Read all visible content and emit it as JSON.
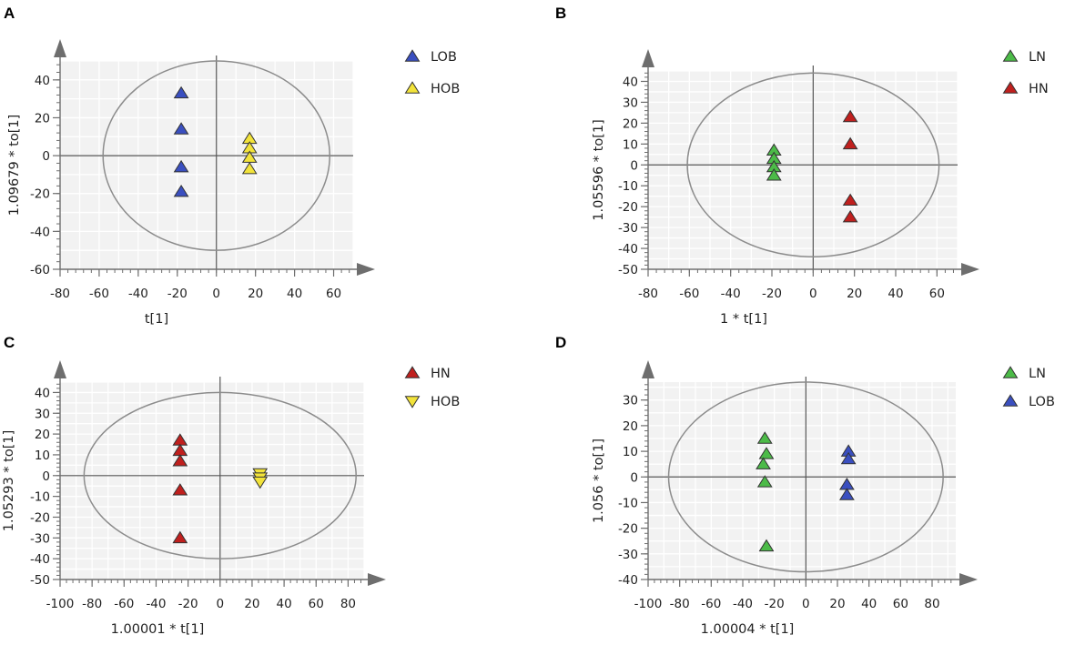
{
  "chart_data": [
    {
      "panel": "A",
      "type": "scatter",
      "xlabel": "t[1]",
      "ylabel": "1.09679 * to[1]",
      "xlim": [
        -80,
        70
      ],
      "ylim": [
        -60,
        50
      ],
      "xticks": [
        -80,
        -60,
        -40,
        -20,
        0,
        20,
        40,
        60
      ],
      "yticks": [
        -60,
        -40,
        -20,
        0,
        20,
        40
      ],
      "ellipse": {
        "rx": 58,
        "ry": 50
      },
      "series": [
        {
          "name": "LOB",
          "color": "#3a4fc0",
          "marker": "triangle-up",
          "points": [
            [
              -18,
              33
            ],
            [
              -18,
              14
            ],
            [
              -18,
              -6
            ],
            [
              -18,
              -19
            ]
          ]
        },
        {
          "name": "HOB",
          "color": "#f2e33a",
          "marker": "triangle-up",
          "points": [
            [
              17,
              9
            ],
            [
              17,
              4
            ],
            [
              17,
              -1
            ],
            [
              17,
              -7
            ]
          ]
        }
      ]
    },
    {
      "panel": "B",
      "type": "scatter",
      "xlabel": "1 * t[1]",
      "ylabel": "1.05596 * to[1]",
      "xlim": [
        -80,
        70
      ],
      "ylim": [
        -50,
        45
      ],
      "xticks": [
        -80,
        -60,
        -40,
        -20,
        0,
        20,
        40,
        60
      ],
      "yticks": [
        -50,
        -40,
        -30,
        -20,
        -10,
        0,
        10,
        20,
        30,
        40
      ],
      "ellipse": {
        "rx": 61,
        "ry": 44
      },
      "series": [
        {
          "name": "LN",
          "color": "#4cbb48",
          "marker": "triangle-up",
          "points": [
            [
              -19,
              7
            ],
            [
              -19,
              3
            ],
            [
              -19,
              -1
            ],
            [
              -19,
              -5
            ]
          ]
        },
        {
          "name": "HN",
          "color": "#c0201e",
          "marker": "triangle-up",
          "points": [
            [
              18,
              23
            ],
            [
              18,
              10
            ],
            [
              18,
              -17
            ],
            [
              18,
              -25
            ]
          ]
        }
      ]
    },
    {
      "panel": "C",
      "type": "scatter",
      "xlabel": "1.00001 * t[1]",
      "ylabel": "1.05293 * to[1]",
      "xlim": [
        -100,
        90
      ],
      "ylim": [
        -50,
        45
      ],
      "xticks": [
        -100,
        -80,
        -60,
        -40,
        -20,
        0,
        20,
        40,
        60,
        80
      ],
      "yticks": [
        -50,
        -40,
        -30,
        -20,
        -10,
        0,
        10,
        20,
        30,
        40
      ],
      "ellipse": {
        "rx": 85,
        "ry": 40
      },
      "series": [
        {
          "name": "HN",
          "color": "#c0201e",
          "marker": "triangle-up",
          "points": [
            [
              -25,
              17
            ],
            [
              -25,
              12
            ],
            [
              -25,
              7
            ],
            [
              -25,
              -7
            ],
            [
              -25,
              -30
            ]
          ]
        },
        {
          "name": "HOB",
          "color": "#f2e33a",
          "marker": "triangle-down",
          "points": [
            [
              25,
              1
            ],
            [
              25,
              -1
            ],
            [
              25,
              -3
            ]
          ]
        }
      ]
    },
    {
      "panel": "D",
      "type": "scatter",
      "xlabel": "1.00004 * t[1]",
      "ylabel": "1.056 * to[1]",
      "xlim": [
        -100,
        95
      ],
      "ylim": [
        -40,
        37
      ],
      "xticks": [
        -100,
        -80,
        -60,
        -40,
        -20,
        0,
        20,
        40,
        60,
        80
      ],
      "yticks": [
        -40,
        -30,
        -20,
        -10,
        0,
        10,
        20,
        30
      ],
      "ellipse": {
        "rx": 87,
        "ry": 37
      },
      "series": [
        {
          "name": "LN",
          "color": "#4cbb48",
          "marker": "triangle-up",
          "points": [
            [
              -26,
              15
            ],
            [
              -25,
              9
            ],
            [
              -27,
              5
            ],
            [
              -26,
              -2
            ],
            [
              -25,
              -27
            ]
          ]
        },
        {
          "name": "LOB",
          "color": "#3a4fc0",
          "marker": "triangle-up",
          "points": [
            [
              27,
              10
            ],
            [
              27,
              7
            ],
            [
              26,
              -3
            ],
            [
              26,
              -7
            ]
          ]
        }
      ]
    }
  ]
}
